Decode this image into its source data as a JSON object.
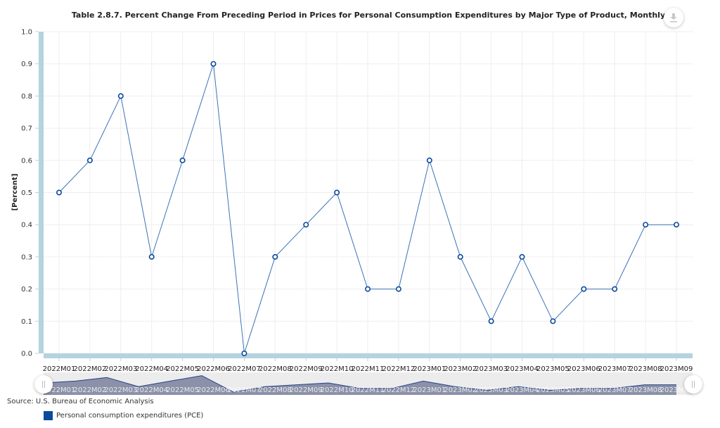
{
  "title": "Table 2.8.7. Percent Change From Preceding Period in Prices for Personal Consumption Expenditures by Major Type of Product, Monthly",
  "download_icon": "download-icon",
  "source": "Source: U.S. Bureau of Economic Analysis",
  "legend": [
    {
      "label": "Personal consumption expenditures (PCE)",
      "color": "#0b4a9b"
    }
  ],
  "colors": {
    "line": "#3a72b5",
    "marker": "#0b4a9b",
    "axis_band": "#b5d3df",
    "navigator_fill": "#8b91a8",
    "navigator_bg": "#ececec"
  },
  "chart_data": {
    "type": "line",
    "title": "Table 2.8.7. Percent Change From Preceding Period in Prices for Personal Consumption Expenditures by Major Type of Product, Monthly",
    "xlabel": "",
    "ylabel": "[Percent]",
    "ylim": [
      0,
      1.0
    ],
    "yticks": [
      "0.0",
      "0.1",
      "0.2",
      "0.3",
      "0.4",
      "0.5",
      "0.6",
      "0.7",
      "0.8",
      "0.9",
      "1.0"
    ],
    "grid": true,
    "legend_position": "bottom-left",
    "categories": [
      "2022M01",
      "2022M02",
      "2022M03",
      "2022M04",
      "2022M05",
      "2022M06",
      "2022M07",
      "2022M08",
      "2022M09",
      "2022M10",
      "2022M11",
      "2022M12",
      "2023M01",
      "2023M02",
      "2023M03",
      "2023M04",
      "2023M05",
      "2023M06",
      "2023M07",
      "2023M08",
      "2023M09"
    ],
    "series": [
      {
        "name": "Personal consumption expenditures (PCE)",
        "values": [
          0.5,
          0.6,
          0.8,
          0.3,
          0.6,
          0.9,
          0.0,
          0.3,
          0.4,
          0.5,
          0.2,
          0.2,
          0.6,
          0.3,
          0.1,
          0.3,
          0.1,
          0.2,
          0.2,
          0.4,
          0.4
        ]
      }
    ]
  }
}
